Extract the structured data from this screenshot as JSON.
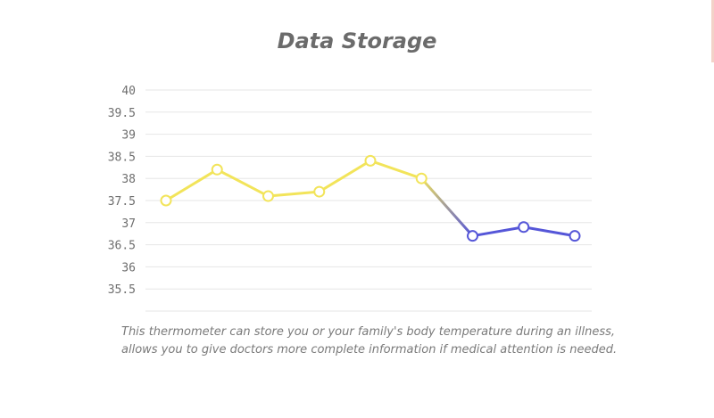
{
  "chart_data": {
    "type": "line",
    "title": "Data Storage",
    "xlabel": "",
    "ylabel": "",
    "ylim": [
      35,
      40
    ],
    "yticks": [
      "40",
      "39.5",
      "39",
      "38.5",
      "38",
      "37.5",
      "37",
      "36.5",
      "36",
      "35.5"
    ],
    "grid": true,
    "series": [
      {
        "values": [
          37.5,
          38.2,
          37.6,
          37.7,
          38.4,
          38.0,
          36.7,
          36.9,
          36.7
        ],
        "segment_colors": {
          "high": "#f2e45a",
          "low": "#5556d8"
        }
      }
    ]
  },
  "caption": {
    "line1": "This thermometer can store you or your family's body temperature during an illness,",
    "line2": "allows you to give doctors more complete information if medical attention is needed."
  },
  "colors": {
    "title": "#6b6b6b",
    "grid": "#e6e6e6",
    "ticks": "#6e6e6e",
    "high_line": "#f2e45a",
    "low_line": "#5556d8"
  }
}
